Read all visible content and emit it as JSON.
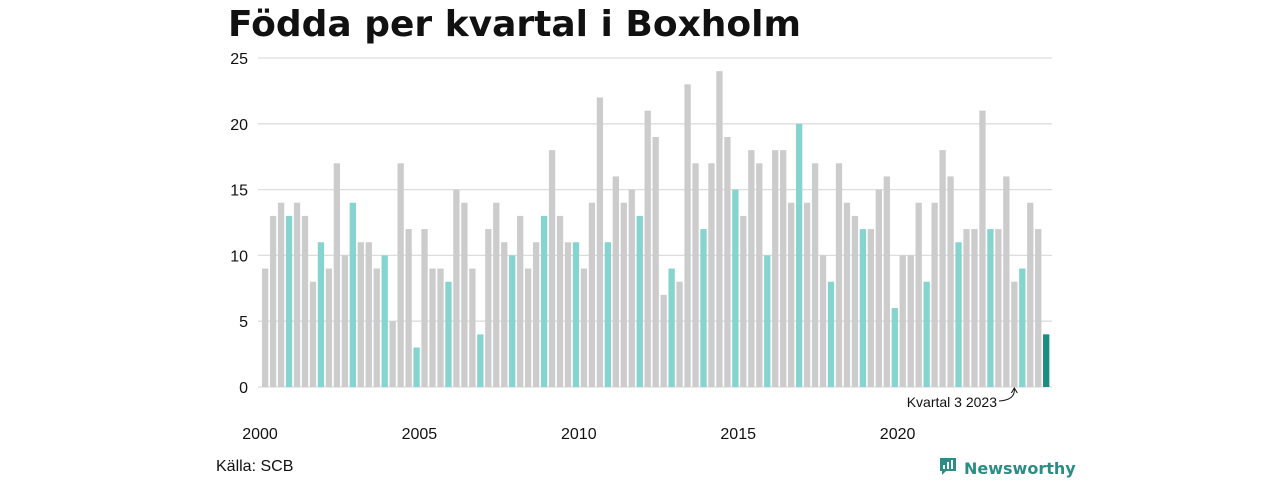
{
  "header": {
    "title": "Födda per kvartal i Boxholm"
  },
  "footer": {
    "source": "Källa: SCB",
    "brand": "Newsworthy"
  },
  "colors": {
    "bar_default": "#cccccc",
    "bar_q4": "#85d4cf",
    "bar_latest": "#1a8c80",
    "gridline": "#dddddd",
    "brand": "#2a8e86"
  },
  "icons": {
    "brand_logo": "newsworthy-logo-icon"
  },
  "chart_data": {
    "type": "bar",
    "title": "Födda per kvartal i Boxholm",
    "ylim": [
      0,
      25
    ],
    "yticks": [
      0,
      5,
      10,
      15,
      20,
      25
    ],
    "xtick_labels": [
      "2000",
      "2005",
      "2010",
      "2015",
      "2020"
    ],
    "grid": true,
    "start_year": 2000,
    "quarters_per_year": 4,
    "highlight_quarter": 4,
    "values": [
      9,
      13,
      14,
      13,
      14,
      13,
      8,
      11,
      9,
      17,
      10,
      14,
      11,
      11,
      9,
      10,
      5,
      17,
      12,
      3,
      12,
      9,
      9,
      8,
      15,
      14,
      9,
      4,
      12,
      14,
      11,
      10,
      13,
      9,
      11,
      13,
      18,
      13,
      11,
      11,
      9,
      14,
      22,
      11,
      16,
      14,
      15,
      13,
      21,
      19,
      7,
      9,
      8,
      23,
      17,
      12,
      17,
      24,
      19,
      15,
      13,
      18,
      17,
      10,
      18,
      18,
      14,
      20,
      14,
      17,
      10,
      8,
      17,
      14,
      13,
      12,
      12,
      15,
      16,
      6,
      10,
      10,
      14,
      8,
      14,
      18,
      16,
      11,
      12,
      12,
      21,
      12,
      12,
      16,
      8,
      9,
      14,
      12,
      4
    ],
    "annotation": {
      "text": "Kvartal 3 2023",
      "index": 94
    }
  }
}
